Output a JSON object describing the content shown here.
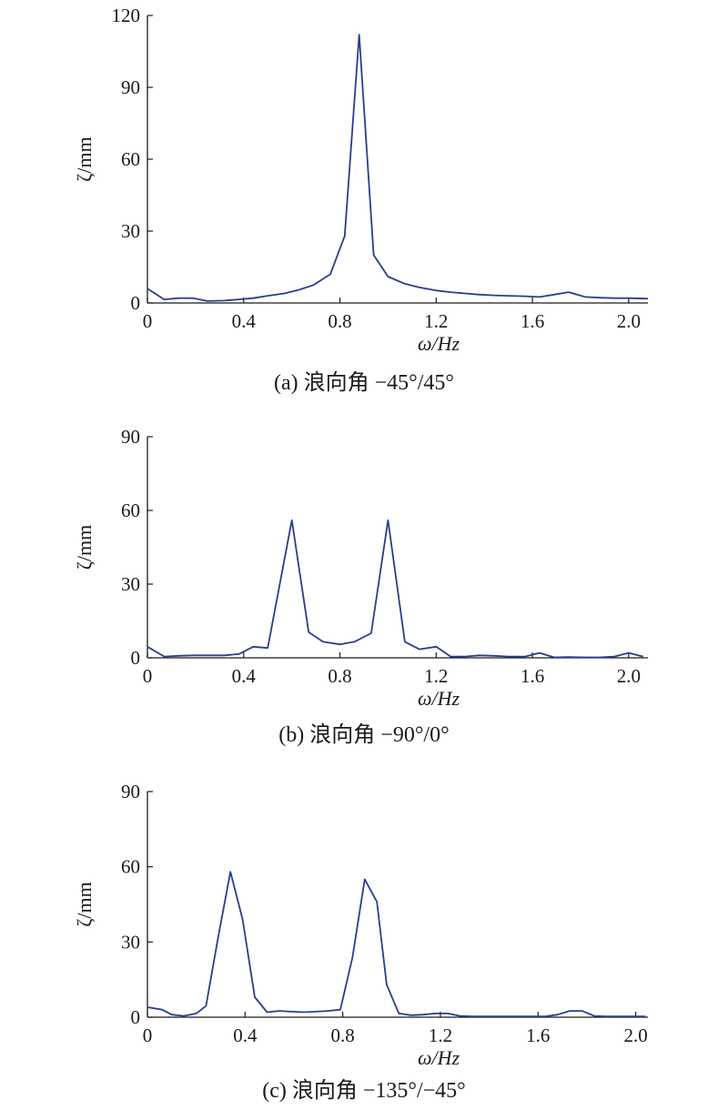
{
  "chart_data": [
    {
      "type": "line",
      "xlabel": "ω/Hz",
      "ylabel": "ζ/mm",
      "caption": "(a) 浪向角 −45°/45°",
      "xlim": [
        0,
        2.08
      ],
      "ylim": [
        0,
        120
      ],
      "xticks": [
        0,
        0.4,
        0.8,
        1.2,
        1.6,
        2.0
      ],
      "xtick_labels": [
        "0",
        "0.4",
        "0.8",
        "1.2",
        "1.6",
        "2.0"
      ],
      "yticks": [
        0,
        30,
        60,
        90,
        120
      ],
      "ytick_labels": [
        "0",
        "30",
        "60",
        "90",
        "120"
      ],
      "color": "#2a3d8f",
      "x": [
        0,
        0.07,
        0.13,
        0.19,
        0.25,
        0.32,
        0.38,
        0.44,
        0.5,
        0.57,
        0.63,
        0.69,
        0.76,
        0.82,
        0.88,
        0.94,
        1.0,
        1.07,
        1.13,
        1.2,
        1.26,
        1.32,
        1.38,
        1.44,
        1.5,
        1.57,
        1.63,
        1.69,
        1.75,
        1.82,
        1.88,
        1.94,
        2.0,
        2.08
      ],
      "y": [
        6,
        1.5,
        2,
        2,
        0.8,
        1,
        1.5,
        2,
        3,
        4,
        5.5,
        7.5,
        12,
        28,
        112,
        20,
        11,
        8,
        6.5,
        5.2,
        4.5,
        4,
        3.5,
        3.2,
        3,
        2.8,
        2.5,
        3.5,
        4.5,
        2.5,
        2.2,
        2,
        2,
        1.8
      ]
    },
    {
      "type": "line",
      "xlabel": "ω/Hz",
      "ylabel": "ζ/mm",
      "caption": "(b) 浪向角 −90°/0°",
      "xlim": [
        0,
        2.08
      ],
      "ylim": [
        0,
        90
      ],
      "xticks": [
        0,
        0.4,
        0.8,
        1.2,
        1.6,
        2.0
      ],
      "xtick_labels": [
        "0",
        "0.4",
        "0.8",
        "1.2",
        "1.6",
        "2.0"
      ],
      "yticks": [
        0,
        30,
        60,
        90
      ],
      "ytick_labels": [
        "0",
        "30",
        "60",
        "90"
      ],
      "color": "#2a3d8f",
      "x": [
        0,
        0.07,
        0.13,
        0.19,
        0.25,
        0.32,
        0.38,
        0.44,
        0.5,
        0.6,
        0.67,
        0.73,
        0.8,
        0.86,
        0.93,
        1.0,
        1.07,
        1.13,
        1.2,
        1.26,
        1.32,
        1.38,
        1.44,
        1.5,
        1.57,
        1.63,
        1.69,
        1.75,
        1.82,
        1.88,
        1.94,
        2.0,
        2.06
      ],
      "y": [
        4.5,
        0.5,
        0.8,
        1,
        1,
        1,
        1.5,
        4.5,
        4,
        56,
        10.5,
        6.5,
        5.5,
        6.5,
        10,
        56,
        6.5,
        3.5,
        4.5,
        0.5,
        0.5,
        1,
        0.8,
        0.5,
        0.5,
        2,
        0.2,
        0.3,
        0.2,
        0.2,
        0.5,
        2,
        0.5
      ]
    },
    {
      "type": "line",
      "xlabel": "ω/Hz",
      "ylabel": "ζ/mm",
      "caption": "(c) 浪向角 −135°/−45°",
      "xlim": [
        0,
        2.05
      ],
      "ylim": [
        0,
        90
      ],
      "xticks": [
        0,
        0.4,
        0.8,
        1.2,
        1.6,
        2.0
      ],
      "xtick_labels": [
        "0",
        "0.4",
        "0.8",
        "1.2",
        "1.6",
        "2.0"
      ],
      "yticks": [
        0,
        30,
        60,
        90
      ],
      "ytick_labels": [
        "0",
        "30",
        "60",
        "90"
      ],
      "color": "#2a3d8f",
      "x": [
        0,
        0.06,
        0.1,
        0.15,
        0.2,
        0.24,
        0.29,
        0.34,
        0.39,
        0.44,
        0.49,
        0.54,
        0.59,
        0.64,
        0.69,
        0.74,
        0.79,
        0.84,
        0.89,
        0.94,
        0.98,
        1.03,
        1.08,
        1.13,
        1.18,
        1.23,
        1.28,
        1.33,
        1.38,
        1.43,
        1.48,
        1.53,
        1.58,
        1.63,
        1.68,
        1.73,
        1.78,
        1.83,
        1.88,
        1.93,
        1.98,
        2.04
      ],
      "y": [
        4,
        3,
        1,
        0.5,
        1.5,
        4.5,
        32,
        58,
        39,
        8,
        2,
        2.5,
        2.2,
        2,
        2.2,
        2.5,
        3,
        24,
        55,
        46,
        13,
        1.5,
        0.8,
        1,
        1.5,
        1.5,
        0.5,
        0.3,
        0.3,
        0.3,
        0.3,
        0.3,
        0.3,
        0.3,
        1,
        2.5,
        2.5,
        0.5,
        0.3,
        0.3,
        0.3,
        0.3
      ]
    }
  ]
}
